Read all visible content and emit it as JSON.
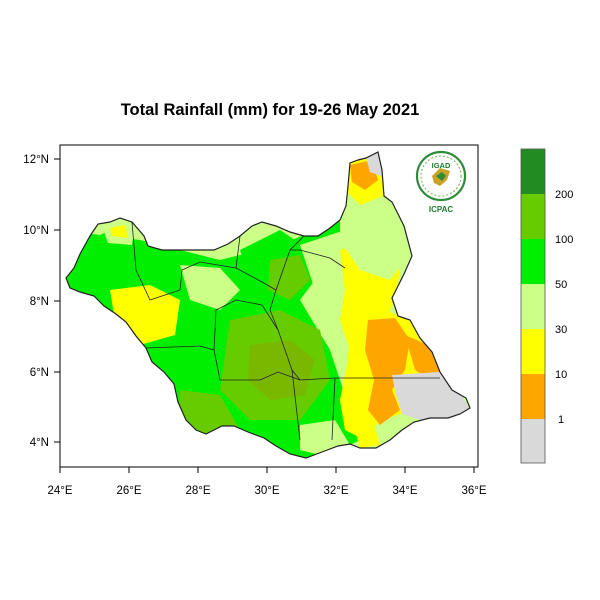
{
  "map": {
    "title": "Total Rainfall (mm) for 19-26 May 2021",
    "lon_labels": [
      "24°E",
      "26°E",
      "28°E",
      "30°E",
      "32°E",
      "34°E",
      "36°E"
    ],
    "lat_labels": [
      "12°N",
      "10°N",
      "8°N",
      "6°N",
      "4°N"
    ]
  },
  "colorbar": {
    "classes": [
      {
        "range": "< 1",
        "color": "#d9d9d9"
      },
      {
        "range": "1-10",
        "color": "#ffa500"
      },
      {
        "range": "10-30",
        "color": "#ffff00"
      },
      {
        "range": "30-50",
        "color": "#ccff88"
      },
      {
        "range": "50-100",
        "color": "#00ee00"
      },
      {
        "range": "100-200",
        "color": "#66cc00"
      },
      {
        "range": "> 200",
        "color": "#228b22"
      }
    ],
    "labels": [
      "1",
      "10",
      "30",
      "50",
      "100",
      "200"
    ]
  },
  "logo": {
    "top_text": "IGAD",
    "bottom_text": "ICPAC",
    "colors": {
      "ring": "#2e8b3a",
      "text": "#1e7a2e"
    }
  }
}
